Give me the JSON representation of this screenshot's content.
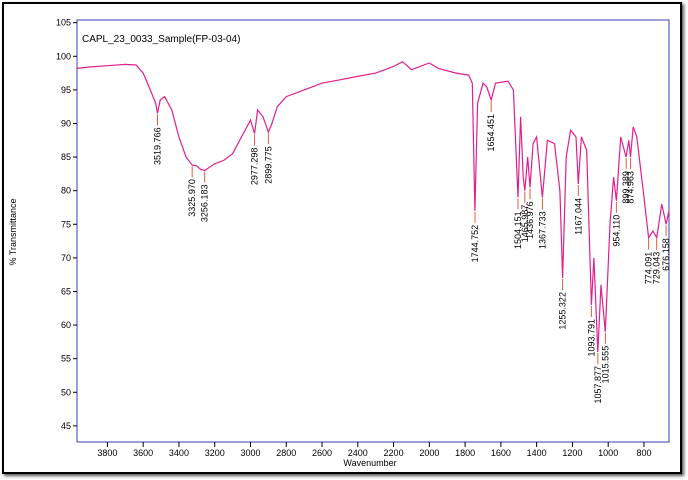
{
  "chart_data": {
    "type": "line",
    "title": "CAPL_23_0033_Sample(FP-03-04)",
    "xlabel": "Wavenumber",
    "ylabel": "% Transmittance",
    "xlim": [
      3970,
      660
    ],
    "ylim": [
      42.6,
      105.4
    ],
    "xticks": [
      3800,
      3600,
      3400,
      3200,
      3000,
      2800,
      2600,
      2400,
      2200,
      2000,
      1800,
      1600,
      1400,
      1200,
      1000,
      800
    ],
    "yticks": [
      45,
      50,
      55,
      60,
      65,
      70,
      75,
      80,
      85,
      90,
      95,
      100,
      105
    ],
    "series": [
      {
        "color": "#e0208c",
        "x": [
          3970,
          3900,
          3800,
          3700,
          3640,
          3600,
          3560,
          3530,
          3520,
          3505,
          3480,
          3440,
          3400,
          3360,
          3326,
          3300,
          3280,
          3256,
          3200,
          3150,
          3100,
          3050,
          3000,
          2977,
          2960,
          2930,
          2900,
          2880,
          2850,
          2800,
          2700,
          2600,
          2500,
          2400,
          2300,
          2200,
          2150,
          2100,
          2000,
          1950,
          1850,
          1780,
          1760,
          1745,
          1730,
          1700,
          1680,
          1654,
          1630,
          1560,
          1530,
          1504,
          1490,
          1475,
          1466,
          1450,
          1437,
          1420,
          1400,
          1368,
          1340,
          1300,
          1270,
          1255,
          1235,
          1210,
          1180,
          1167,
          1150,
          1120,
          1094,
          1080,
          1058,
          1040,
          1016,
          990,
          970,
          954,
          930,
          900,
          885,
          875,
          860,
          840,
          800,
          774,
          750,
          729,
          700,
          676,
          660
        ],
        "values": [
          98.2,
          98.4,
          98.6,
          98.8,
          98.7,
          97.5,
          95,
          93,
          91.5,
          93.5,
          94,
          92,
          88,
          85,
          83.8,
          83.7,
          83.2,
          83,
          84,
          84.5,
          85.5,
          88,
          90.5,
          88.5,
          92,
          91,
          88.7,
          90,
          92.5,
          94,
          95,
          96,
          96.5,
          97,
          97.5,
          98.5,
          99.2,
          98,
          99,
          98.2,
          97.5,
          97.2,
          96,
          77,
          93,
          96,
          95.5,
          93.5,
          96,
          96.3,
          95,
          79,
          91,
          82,
          80,
          85,
          80.5,
          87,
          88,
          79,
          87.5,
          87,
          80,
          67,
          85,
          89,
          88,
          81,
          88,
          86,
          63,
          70,
          56,
          66,
          59,
          75,
          82,
          78.5,
          88,
          85,
          87.5,
          85,
          89.5,
          88,
          79,
          73,
          74,
          73,
          78,
          75,
          77
        ]
      }
    ],
    "peaks": {
      "x": [
        3519.766,
        3325.97,
        3256.183,
        2977.298,
        2899.775,
        1744.752,
        1654.451,
        1504.151,
        1465.987,
        1436.976,
        1367.733,
        1255.322,
        1167.044,
        1093.791,
        1057.877,
        1015.555,
        954.11,
        899.389,
        874.963,
        774.091,
        729.043,
        676.158
      ],
      "values": [
        91.5,
        83.8,
        83,
        88.5,
        88.7,
        77,
        93.5,
        79,
        80,
        80.5,
        79,
        67,
        81,
        63,
        56,
        59,
        78.5,
        85,
        85,
        73,
        73,
        75
      ],
      "labels": [
        "3519.766",
        "3325.970",
        "3256.183",
        "2977.298",
        "2899.775",
        "1744.752",
        "1654.451",
        "1504.151",
        "1465.987",
        "1436.976",
        "1367.733",
        "1255.322",
        "1167.044",
        "1093.791",
        "1057.877",
        "1015.555",
        "954.110",
        "899.389",
        "874.963",
        "774.091",
        "729.043",
        "676.158"
      ]
    }
  }
}
